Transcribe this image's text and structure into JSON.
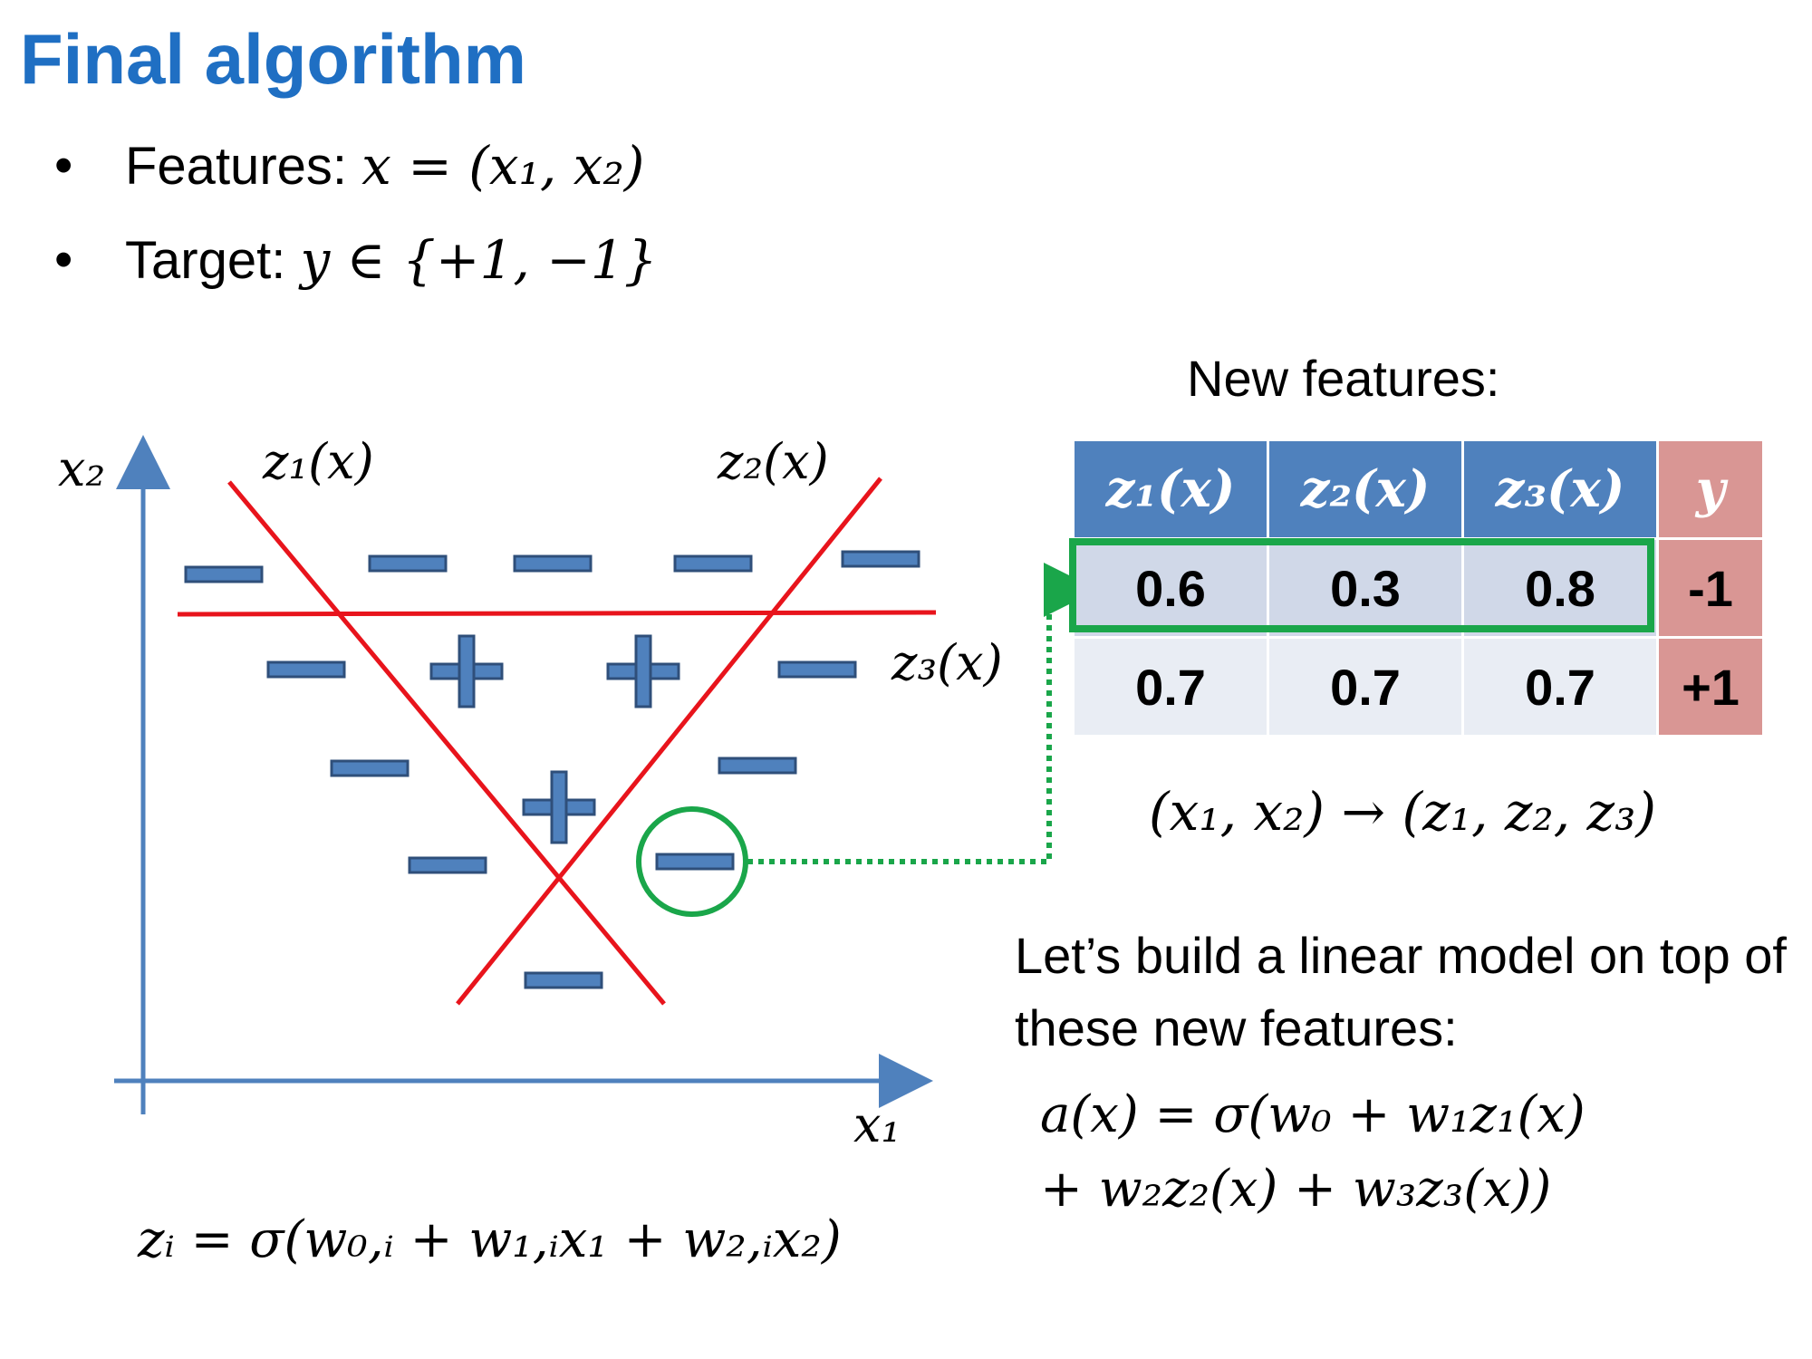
{
  "title": "Final algorithm",
  "bullets": [
    {
      "label": "Features:",
      "math": "x = (x₁, x₂)"
    },
    {
      "label": "Target:",
      "math": "y ∈ {+1, −1}"
    }
  ],
  "bullet_char": "•",
  "plot": {
    "axis_x_label": "x₁",
    "axis_y_label": "x₂",
    "line_labels": [
      "z₁(x)",
      "z₂(x)",
      "z₃(x)"
    ],
    "plus_symbol": "+",
    "minus_symbol": "−",
    "colors": {
      "axis": "#4f81bd",
      "lines": "#e8141c",
      "marks": "#4f81bd",
      "marks_outline": "#2f4f7a",
      "highlight": "#1aa64a"
    }
  },
  "new_features_label": "New features:",
  "table": {
    "headers": [
      "z₁(x)",
      "z₂(x)",
      "z₃(x)",
      "y"
    ],
    "rows": [
      [
        "0.6",
        "0.3",
        "0.8",
        "-1"
      ],
      [
        "0.7",
        "0.7",
        "0.7",
        "+1"
      ]
    ]
  },
  "mapping": "(x₁, x₂) → (z₁, z₂, z₃)",
  "description": "Let’s build a linear model on top of these new features:",
  "model_formula_line1": "a(x) = σ(w₀ + w₁z₁(x)",
  "model_formula_line2": "+ w₂z₂(x) + w₃z₃(x))",
  "neuron_formula": "zᵢ = σ(w₀,ᵢ + w₁,ᵢx₁ + w₂,ᵢx₂)"
}
